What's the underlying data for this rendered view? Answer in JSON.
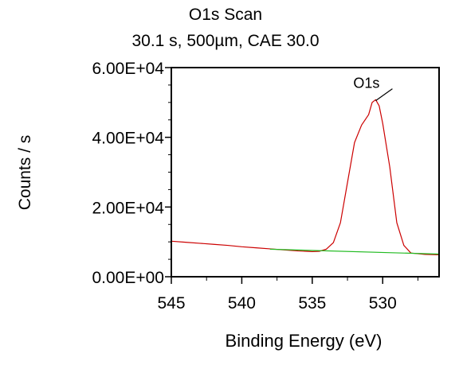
{
  "chart_data": {
    "type": "line",
    "title": "O1s Scan",
    "subtitle": "30.1 s,  500µm,  CAE 30.0",
    "xlabel": "Binding Energy (eV)",
    "ylabel": "Counts / s",
    "xlim": [
      545,
      526
    ],
    "ylim": [
      0,
      60000
    ],
    "x_reversed": true,
    "x_ticks": [
      545,
      540,
      535,
      530
    ],
    "x_tick_labels": [
      "545",
      "540",
      "535",
      "530"
    ],
    "y_ticks": [
      0,
      20000,
      40000,
      60000
    ],
    "y_tick_labels": [
      "0.00E+00",
      "2.00E+04",
      "4.00E+04",
      "6.00E+04"
    ],
    "grid": false,
    "legend": "none",
    "peak_annotation": {
      "text": "O1s",
      "x": 530.5,
      "y": 50500
    },
    "series": [
      {
        "color": "#cc0000",
        "x": [
          545,
          544,
          543,
          542,
          541,
          540,
          539,
          538,
          537,
          536,
          535,
          534.5,
          534,
          533.5,
          533,
          532.5,
          532,
          531.5,
          531,
          530.75,
          530.5,
          530.25,
          530,
          529.5,
          529,
          528.5,
          528,
          527.5,
          527,
          526.5,
          526
        ],
        "values": [
          10200,
          9900,
          9600,
          9300,
          9000,
          8600,
          8300,
          8000,
          7700,
          7400,
          7200,
          7300,
          7900,
          9800,
          15500,
          27000,
          38500,
          43500,
          46500,
          50000,
          50800,
          49000,
          44000,
          31500,
          15500,
          9000,
          6800,
          6600,
          6400,
          6350,
          6300
        ]
      },
      {
        "color": "#22bb22",
        "x": [
          538,
          526
        ],
        "values": [
          7900,
          6500
        ]
      }
    ]
  }
}
